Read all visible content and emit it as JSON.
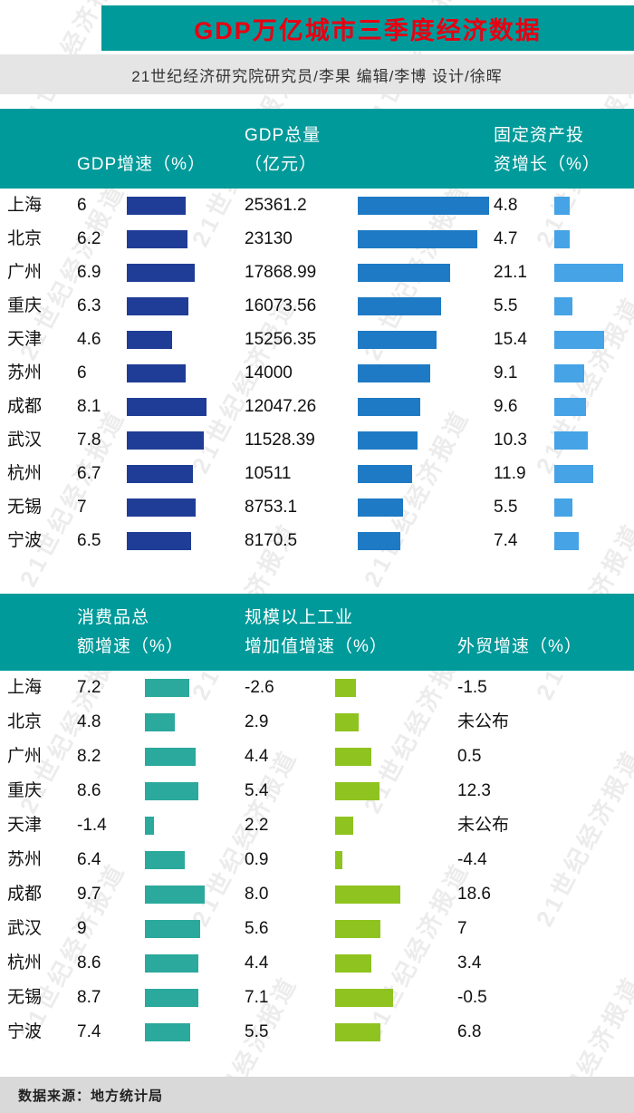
{
  "title": "GDP万亿城市三季度经济数据",
  "byline": "21世纪经济研究院研究员/李果 编辑/李博  设计/徐晖",
  "footer": "数据来源：地方统计局",
  "watermark": "21世纪经济报道",
  "colors": {
    "teal_band": "#009a9a",
    "title_red": "#e60012",
    "byline_bg": "#e5e5e5",
    "footer_bg": "#d9d9d9",
    "bar_navy": "#1f3d96",
    "bar_blue": "#1e7ac4",
    "bar_lightblue": "#45a3e6",
    "bar_teal": "#2aa99c",
    "bar_green": "#8fc31f"
  },
  "tables": [
    {
      "headers": [
        {
          "line1": "",
          "line2": "GDP增速（%）"
        },
        {
          "line1": "GDP总量",
          "line2": "（亿元）"
        },
        {
          "line1": "固定资产投",
          "line2": "资增长（%）"
        }
      ]
    },
    {
      "headers": [
        {
          "line1": "消费品总",
          "line2": "额增速（%）"
        },
        {
          "line1": "规模以上工业",
          "line2": "增加值增速（%）"
        },
        {
          "line1": "",
          "line2": "外贸增速（%）"
        }
      ]
    }
  ],
  "chart_data": [
    {
      "type": "bar",
      "title": "GDP万亿城市三季度经济数据（GDP增速 / GDP总量 / 固定资产投资增长）",
      "categories": [
        "上海",
        "北京",
        "广州",
        "重庆",
        "天津",
        "苏州",
        "成都",
        "武汉",
        "杭州",
        "无锡",
        "宁波"
      ],
      "series": [
        {
          "name": "GDP增速（%）",
          "values": [
            6,
            6.2,
            6.9,
            6.3,
            4.6,
            6,
            8.1,
            7.8,
            6.7,
            7,
            6.5
          ],
          "labels": [
            "6",
            "6.2",
            "6.9",
            "6.3",
            "4.6",
            "6",
            "8.1",
            "7.8",
            "6.7",
            "7",
            "6.5"
          ]
        },
        {
          "name": "GDP总量（亿元）",
          "values": [
            25361.2,
            23130,
            17868.99,
            16073.56,
            15256.35,
            14000,
            12047.26,
            11528.39,
            10511,
            8753.1,
            8170.5
          ],
          "labels": [
            "25361.2",
            "23130",
            "17868.99",
            "16073.56",
            "15256.35",
            "14000",
            "12047.26",
            "11528.39",
            "10511",
            "8753.1",
            "8170.5"
          ]
        },
        {
          "name": "固定资产投资增长（%）",
          "values": [
            4.8,
            4.7,
            21.1,
            5.5,
            15.4,
            9.1,
            9.6,
            10.3,
            11.9,
            5.5,
            7.4
          ],
          "labels": [
            "4.8",
            "4.7",
            "21.1",
            "5.5",
            "15.4",
            "9.1",
            "9.6",
            "10.3",
            "11.9",
            "5.5",
            "7.4"
          ]
        }
      ],
      "legend_position": "column-headers",
      "grid": false
    },
    {
      "type": "bar",
      "title": "GDP万亿城市三季度经济数据（消费品总额增速 / 规模以上工业增加值增速 / 外贸增速）",
      "categories": [
        "上海",
        "北京",
        "广州",
        "重庆",
        "天津",
        "苏州",
        "成都",
        "武汉",
        "杭州",
        "无锡",
        "宁波"
      ],
      "series": [
        {
          "name": "消费品总额增速（%）",
          "values": [
            7.2,
            4.8,
            8.2,
            8.6,
            -1.4,
            6.4,
            9.7,
            9,
            8.6,
            8.7,
            7.4
          ],
          "labels": [
            "7.2",
            "4.8",
            "8.2",
            "8.6",
            "-1.4",
            "6.4",
            "9.7",
            "9",
            "8.6",
            "8.7",
            "7.4"
          ]
        },
        {
          "name": "规模以上工业增加值增速（%）",
          "values": [
            -2.6,
            2.9,
            4.4,
            5.4,
            2.2,
            0.9,
            8.0,
            5.6,
            4.4,
            7.1,
            5.5
          ],
          "labels": [
            "-2.6",
            "2.9",
            "4.4",
            "5.4",
            "2.2",
            "0.9",
            "8.0",
            "5.6",
            "4.4",
            "7.1",
            "5.5"
          ]
        },
        {
          "name": "外贸增速（%）",
          "values": [
            -1.5,
            null,
            0.5,
            12.3,
            null,
            -4.4,
            18.6,
            7,
            3.4,
            -0.5,
            6.8
          ],
          "labels": [
            "-1.5",
            "未公布",
            "0.5",
            "12.3",
            "未公布",
            "-4.4",
            "18.6",
            "7",
            "3.4",
            "-0.5",
            "6.8"
          ]
        }
      ],
      "legend_position": "column-headers",
      "grid": false
    }
  ]
}
